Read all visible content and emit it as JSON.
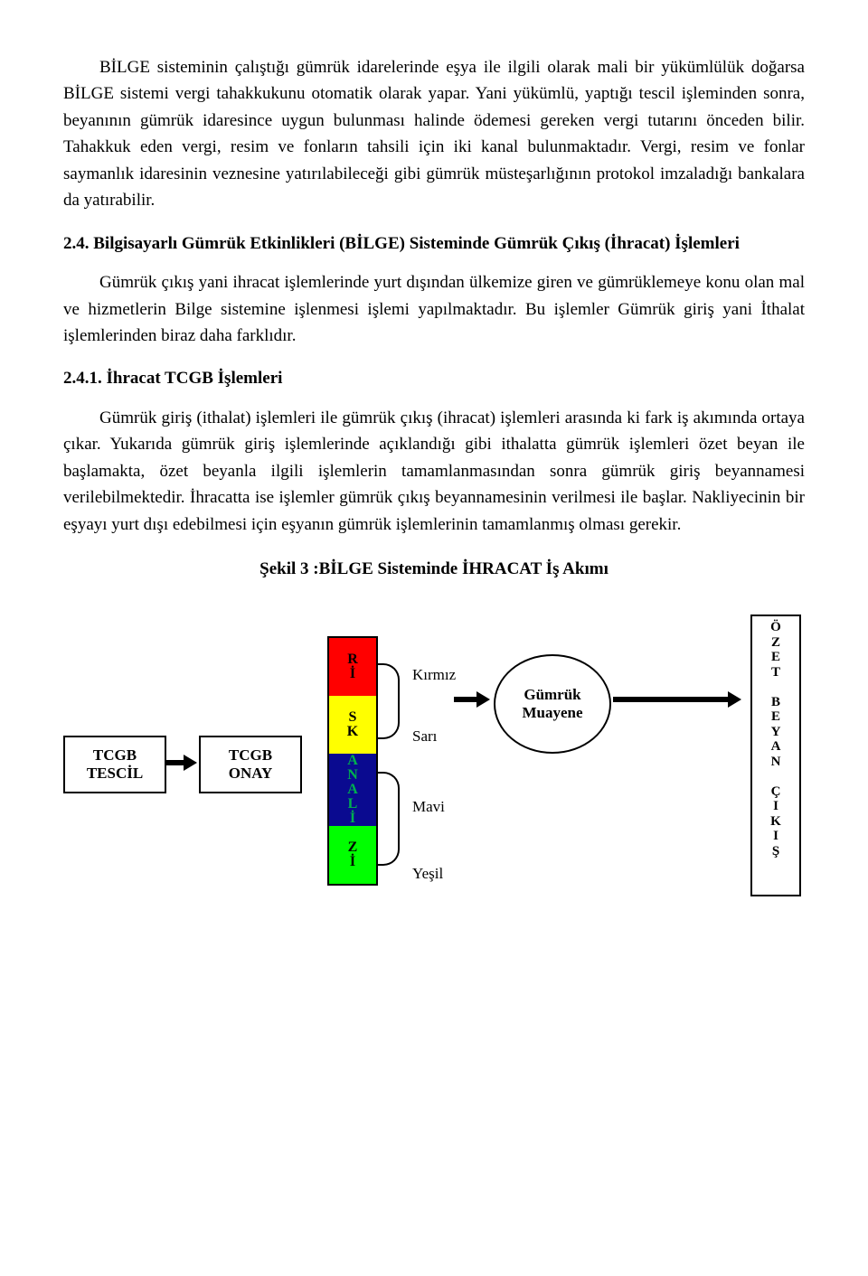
{
  "paragraphs": {
    "p1": "BİLGE sisteminin çalıştığı gümrük idarelerinde eşya ile ilgili olarak mali bir yükümlülük doğarsa BİLGE sistemi vergi tahakkukunu otomatik olarak yapar. Yani yükümlü, yaptığı tescil işleminden sonra, beyanının gümrük idaresince uygun bulunması halinde ödemesi gereken vergi tutarını önceden bilir. Tahakkuk eden vergi, resim ve fonların tahsili için iki kanal bulunmaktadır. Vergi, resim ve fonlar saymanlık idaresinin veznesine yatırılabileceği gibi gümrük müsteşarlığının protokol imzaladığı bankalara da yatırabilir.",
    "p2": "Gümrük çıkış yani ihracat işlemlerinde yurt dışından ülkemize giren ve gümrüklemeye konu olan mal ve hizmetlerin Bilge sistemine işlenmesi işlemi yapılmaktadır. Bu işlemler Gümrük giriş yani İthalat işlemlerinden biraz daha farklıdır.",
    "p3": "Gümrük giriş (ithalat) işlemleri ile gümrük çıkış (ihracat) işlemleri arasında ki fark iş akımında ortaya çıkar. Yukarıda gümrük giriş işlemlerinde açıklandığı gibi ithalatta gümrük işlemleri özet beyan ile başlamakta, özet beyanla ilgili işlemlerin tamamlanmasından sonra gümrük giriş beyannamesi verilebilmektedir.  İhracatta ise işlemler gümrük çıkış beyannamesinin verilmesi ile başlar. Nakliyecinin bir eşyayı yurt dışı edebilmesi için eşyanın gümrük işlemlerinin tamamlanmış olması gerekir."
  },
  "headings": {
    "h24": "2.4.   Bilgisayarlı Gümrük Etkinlikleri (BİLGE) Sisteminde Gümrük Çıkış (İhracat) İşlemleri",
    "h241": "2.4.1. İhracat TCGB  İşlemleri",
    "fig": "Şekil 3  :BİLGE Sisteminde İHRACAT İş Akımı"
  },
  "flow": {
    "box1": "TCGB\nTESCİL",
    "box2": "TCGB\nONAY",
    "risk": {
      "segments": [
        {
          "color": "#ff0000",
          "text": "R\nİ",
          "textColor": "#000000"
        },
        {
          "color": "#ffff00",
          "text": "S\nK",
          "textColor": "#000000"
        },
        {
          "color": "#0a0a90",
          "text": "A\nN\nA\nL\nİ",
          "textColor": "#00b04f"
        },
        {
          "color": "#00ff00",
          "text": "Z\nİ",
          "textColor": "#000000"
        }
      ]
    },
    "labels": {
      "kirmizi": "Kırmız",
      "sari": "Sarı",
      "mavi": "Mavi",
      "yesil": "Yeşil"
    },
    "circle": "Gümrük\nMuayene",
    "ozet": "Ö\nZ\nE\nT\n \nB\nE\nY\nA\nN\n \nÇ\nI\nK\nI\nŞ"
  }
}
